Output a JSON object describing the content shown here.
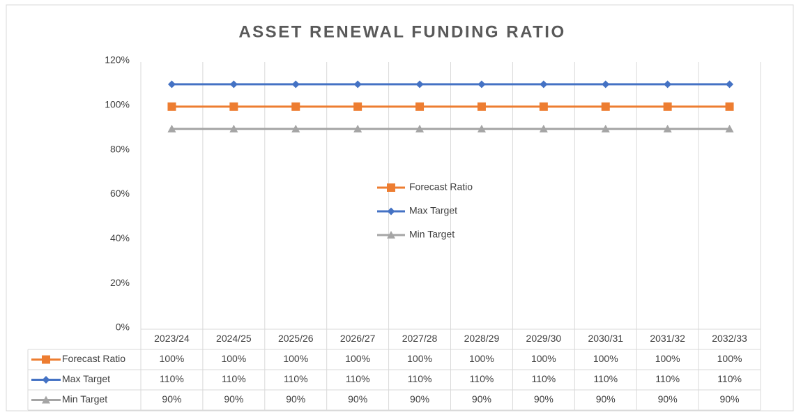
{
  "chart_data": {
    "type": "line",
    "title": "ASSET RENEWAL FUNDING RATIO",
    "categories": [
      "2023/24",
      "2024/25",
      "2025/26",
      "2026/27",
      "2027/28",
      "2028/29",
      "2029/30",
      "2030/31",
      "2031/32",
      "2032/33"
    ],
    "series": [
      {
        "name": "Forecast Ratio",
        "color": "#ed7d31",
        "marker": "square",
        "values": [
          100,
          100,
          100,
          100,
          100,
          100,
          100,
          100,
          100,
          100
        ],
        "value_labels": [
          "100%",
          "100%",
          "100%",
          "100%",
          "100%",
          "100%",
          "100%",
          "100%",
          "100%",
          "100%"
        ]
      },
      {
        "name": "Max Target",
        "color": "#4472c4",
        "marker": "diamond",
        "values": [
          110,
          110,
          110,
          110,
          110,
          110,
          110,
          110,
          110,
          110
        ],
        "value_labels": [
          "110%",
          "110%",
          "110%",
          "110%",
          "110%",
          "110%",
          "110%",
          "110%",
          "110%",
          "110%"
        ]
      },
      {
        "name": "Min Target",
        "color": "#a5a5a5",
        "marker": "triangle",
        "values": [
          90,
          90,
          90,
          90,
          90,
          90,
          90,
          90,
          90,
          90
        ],
        "value_labels": [
          "90%",
          "90%",
          "90%",
          "90%",
          "90%",
          "90%",
          "90%",
          "90%",
          "90%",
          "90%"
        ]
      }
    ],
    "ylim": [
      0,
      120
    ],
    "yticks": [
      {
        "value": 0,
        "label": "0%"
      },
      {
        "value": 20,
        "label": "20%"
      },
      {
        "value": 40,
        "label": "40%"
      },
      {
        "value": 60,
        "label": "60%"
      },
      {
        "value": 80,
        "label": "80%"
      },
      {
        "value": 100,
        "label": "100%"
      },
      {
        "value": 120,
        "label": "120%"
      }
    ],
    "xgrid": true,
    "legend": "center",
    "data_table": true
  }
}
